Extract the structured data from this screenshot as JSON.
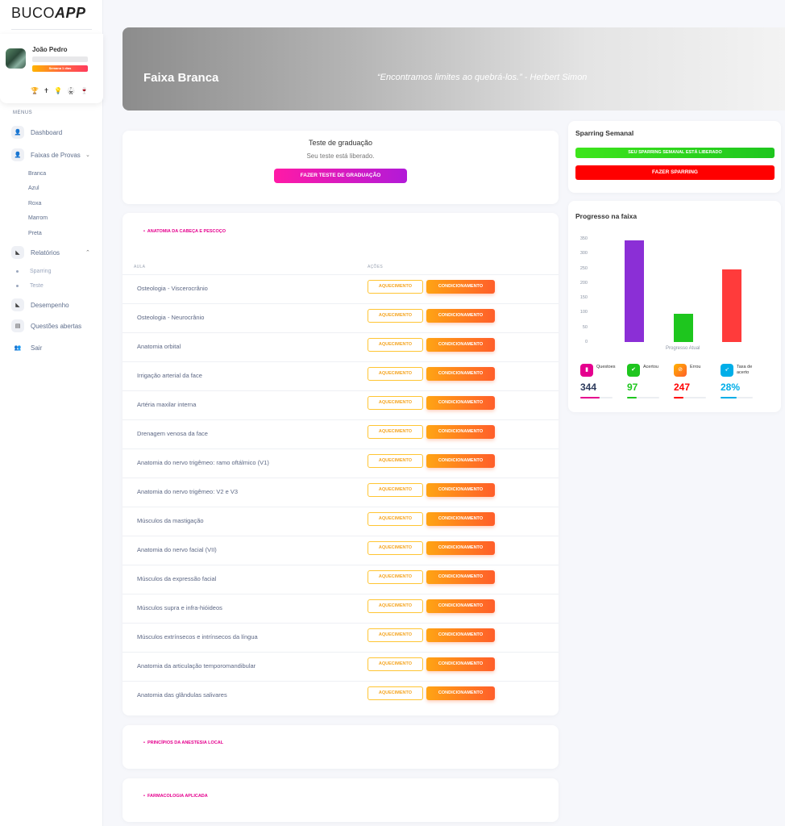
{
  "app": {
    "logo_light": "BUCO",
    "logo_bold": "APP"
  },
  "user": {
    "name": "João Pedro",
    "badge": "Semana 1 dias",
    "icons": "🏆 ✝ 💡 🥋 🍷"
  },
  "menu": {
    "title": "MENUS",
    "dashboard": "Dashboard",
    "faixas": "Faixas de Provas",
    "faixas_items": [
      "Branca",
      "Azul",
      "Roxa",
      "Marrom",
      "Preta"
    ],
    "relatorios": "Relatórios",
    "relatorios_items": [
      "Sparring",
      "Teste"
    ],
    "desempenho": "Desempenho",
    "questoes": "Questões abertas",
    "sair": "Sair"
  },
  "banner": {
    "title": "Faixa Branca",
    "quote": "“Encontramos limites ao quebrá-los.” - Herbert Simon"
  },
  "graduation": {
    "title": "Teste de graduação",
    "subtitle": "Seu teste está liberado.",
    "button": "FAZER TESTE DE GRADUAÇÃO"
  },
  "lessons": {
    "section": "ANATOMIA DA CABEÇA E PESCOÇO",
    "col_aula": "AULA",
    "col_acoes": "AÇÕES",
    "btn_aquecimento": "AQUECIMENTO",
    "btn_condicionamento": "CONDICIONAMENTO",
    "rows": [
      "Osteologia - Viscerocrânio",
      "Osteologia - Neurocrânio",
      "Anatomia orbital",
      "Irrigação arterial da face",
      "Artéria maxilar interna",
      "Drenagem venosa da face",
      "Anatomia do nervo trigêmeo: ramo oftálmico (V1)",
      "Anatomia do nervo trigêmeo: V2 e V3",
      "Músculos da mastigação",
      "Anatomia do nervo facial (VII)",
      "Músculos da expressão facial",
      "Músculos supra e infra-hióideos",
      "Músculos extrínsecos e intrínsecos da língua",
      "Anatomia da articulação temporomandibular",
      "Anatomia das glândulas salivares"
    ]
  },
  "section2": "PRINCÍPIOS DA ANESTESIA LOCAL",
  "section3": "FARMACOLOGIA APLICADA",
  "sparring": {
    "title": "Sparring Semanal",
    "status": "SEU SPARRING SEMANAL ESTÁ LIBERADO",
    "button": "FAZER SPARRING"
  },
  "progress": {
    "title": "Progresso na faixa",
    "stats": [
      {
        "label": "Questoes",
        "value": "344",
        "color": "#e5008e",
        "fill": 0.6,
        "icon": "file-icon"
      },
      {
        "label": "Acertou",
        "value": "97",
        "color": "#1ec61e",
        "fill": 0.3,
        "icon": "check-icon"
      },
      {
        "label": "Errou",
        "value": "247",
        "color": "#ff0000",
        "fill": 0.3,
        "icon": "ban-icon"
      },
      {
        "label": "Taxa de acerto",
        "value": "28%",
        "color": "#00aee8",
        "fill": 0.5,
        "icon": "rocket-icon"
      }
    ]
  },
  "chart_data": {
    "type": "bar",
    "categories": [
      "Progresso Atual"
    ],
    "series": [
      {
        "values": [
          344
        ],
        "color": "#8b2fd6"
      },
      {
        "values": [
          97
        ],
        "color": "#1ec61e"
      },
      {
        "values": [
          247
        ],
        "color": "#ff3b3b"
      }
    ],
    "yticks": [
      "350",
      "300",
      "250",
      "200",
      "150",
      "100",
      "50",
      "0"
    ],
    "ylim": [
      0,
      350
    ],
    "xlabel": "Progresso Atual",
    "legend": "none"
  }
}
